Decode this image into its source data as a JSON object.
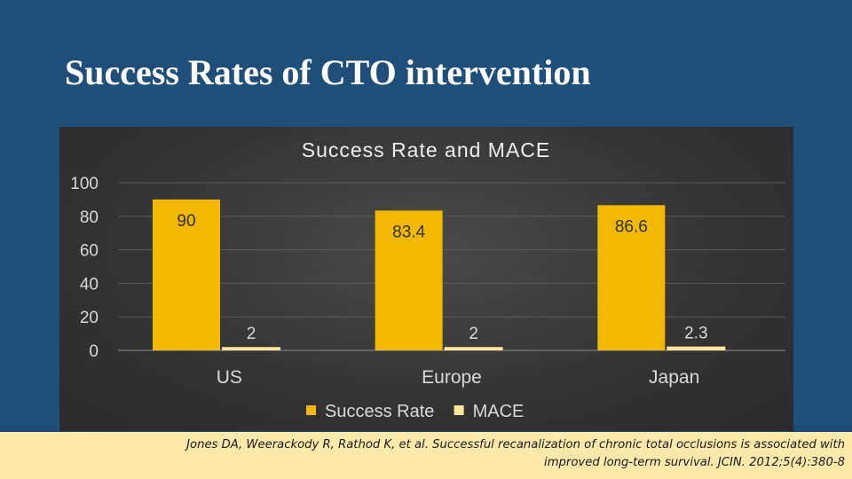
{
  "slide": {
    "title": "Success Rates of CTO intervention",
    "citation_line1": "Jones DA, Weerackody R, Rathod K, et al. Successful recanalization of chronic total occlusions is associated with",
    "citation_line2": "improved long-term survival. JCIN. 2012;5(4):380-8"
  },
  "colors": {
    "background": "#1f4e79",
    "success_rate": "#f2b800",
    "mace": "#ffe699",
    "chart_text": "#d9d9d9",
    "citation_bg": "#fde9a9"
  },
  "chart_data": {
    "type": "bar",
    "title": "Success Rate and MACE",
    "categories": [
      "US",
      "Europe",
      "Japan"
    ],
    "series": [
      {
        "name": "Success Rate",
        "values": [
          90,
          83.4,
          86.6
        ],
        "labels": [
          "90",
          "83.4",
          "86.6"
        ],
        "color": "#f2b800"
      },
      {
        "name": "MACE",
        "values": [
          2,
          2,
          2.3
        ],
        "labels": [
          "2",
          "2",
          "2.3"
        ],
        "color": "#ffe699"
      }
    ],
    "yticks": [
      0,
      20,
      40,
      60,
      80,
      100
    ],
    "ylim": [
      0,
      100
    ],
    "grid": true,
    "legend": "bottom",
    "xlabel": "",
    "ylabel": ""
  }
}
